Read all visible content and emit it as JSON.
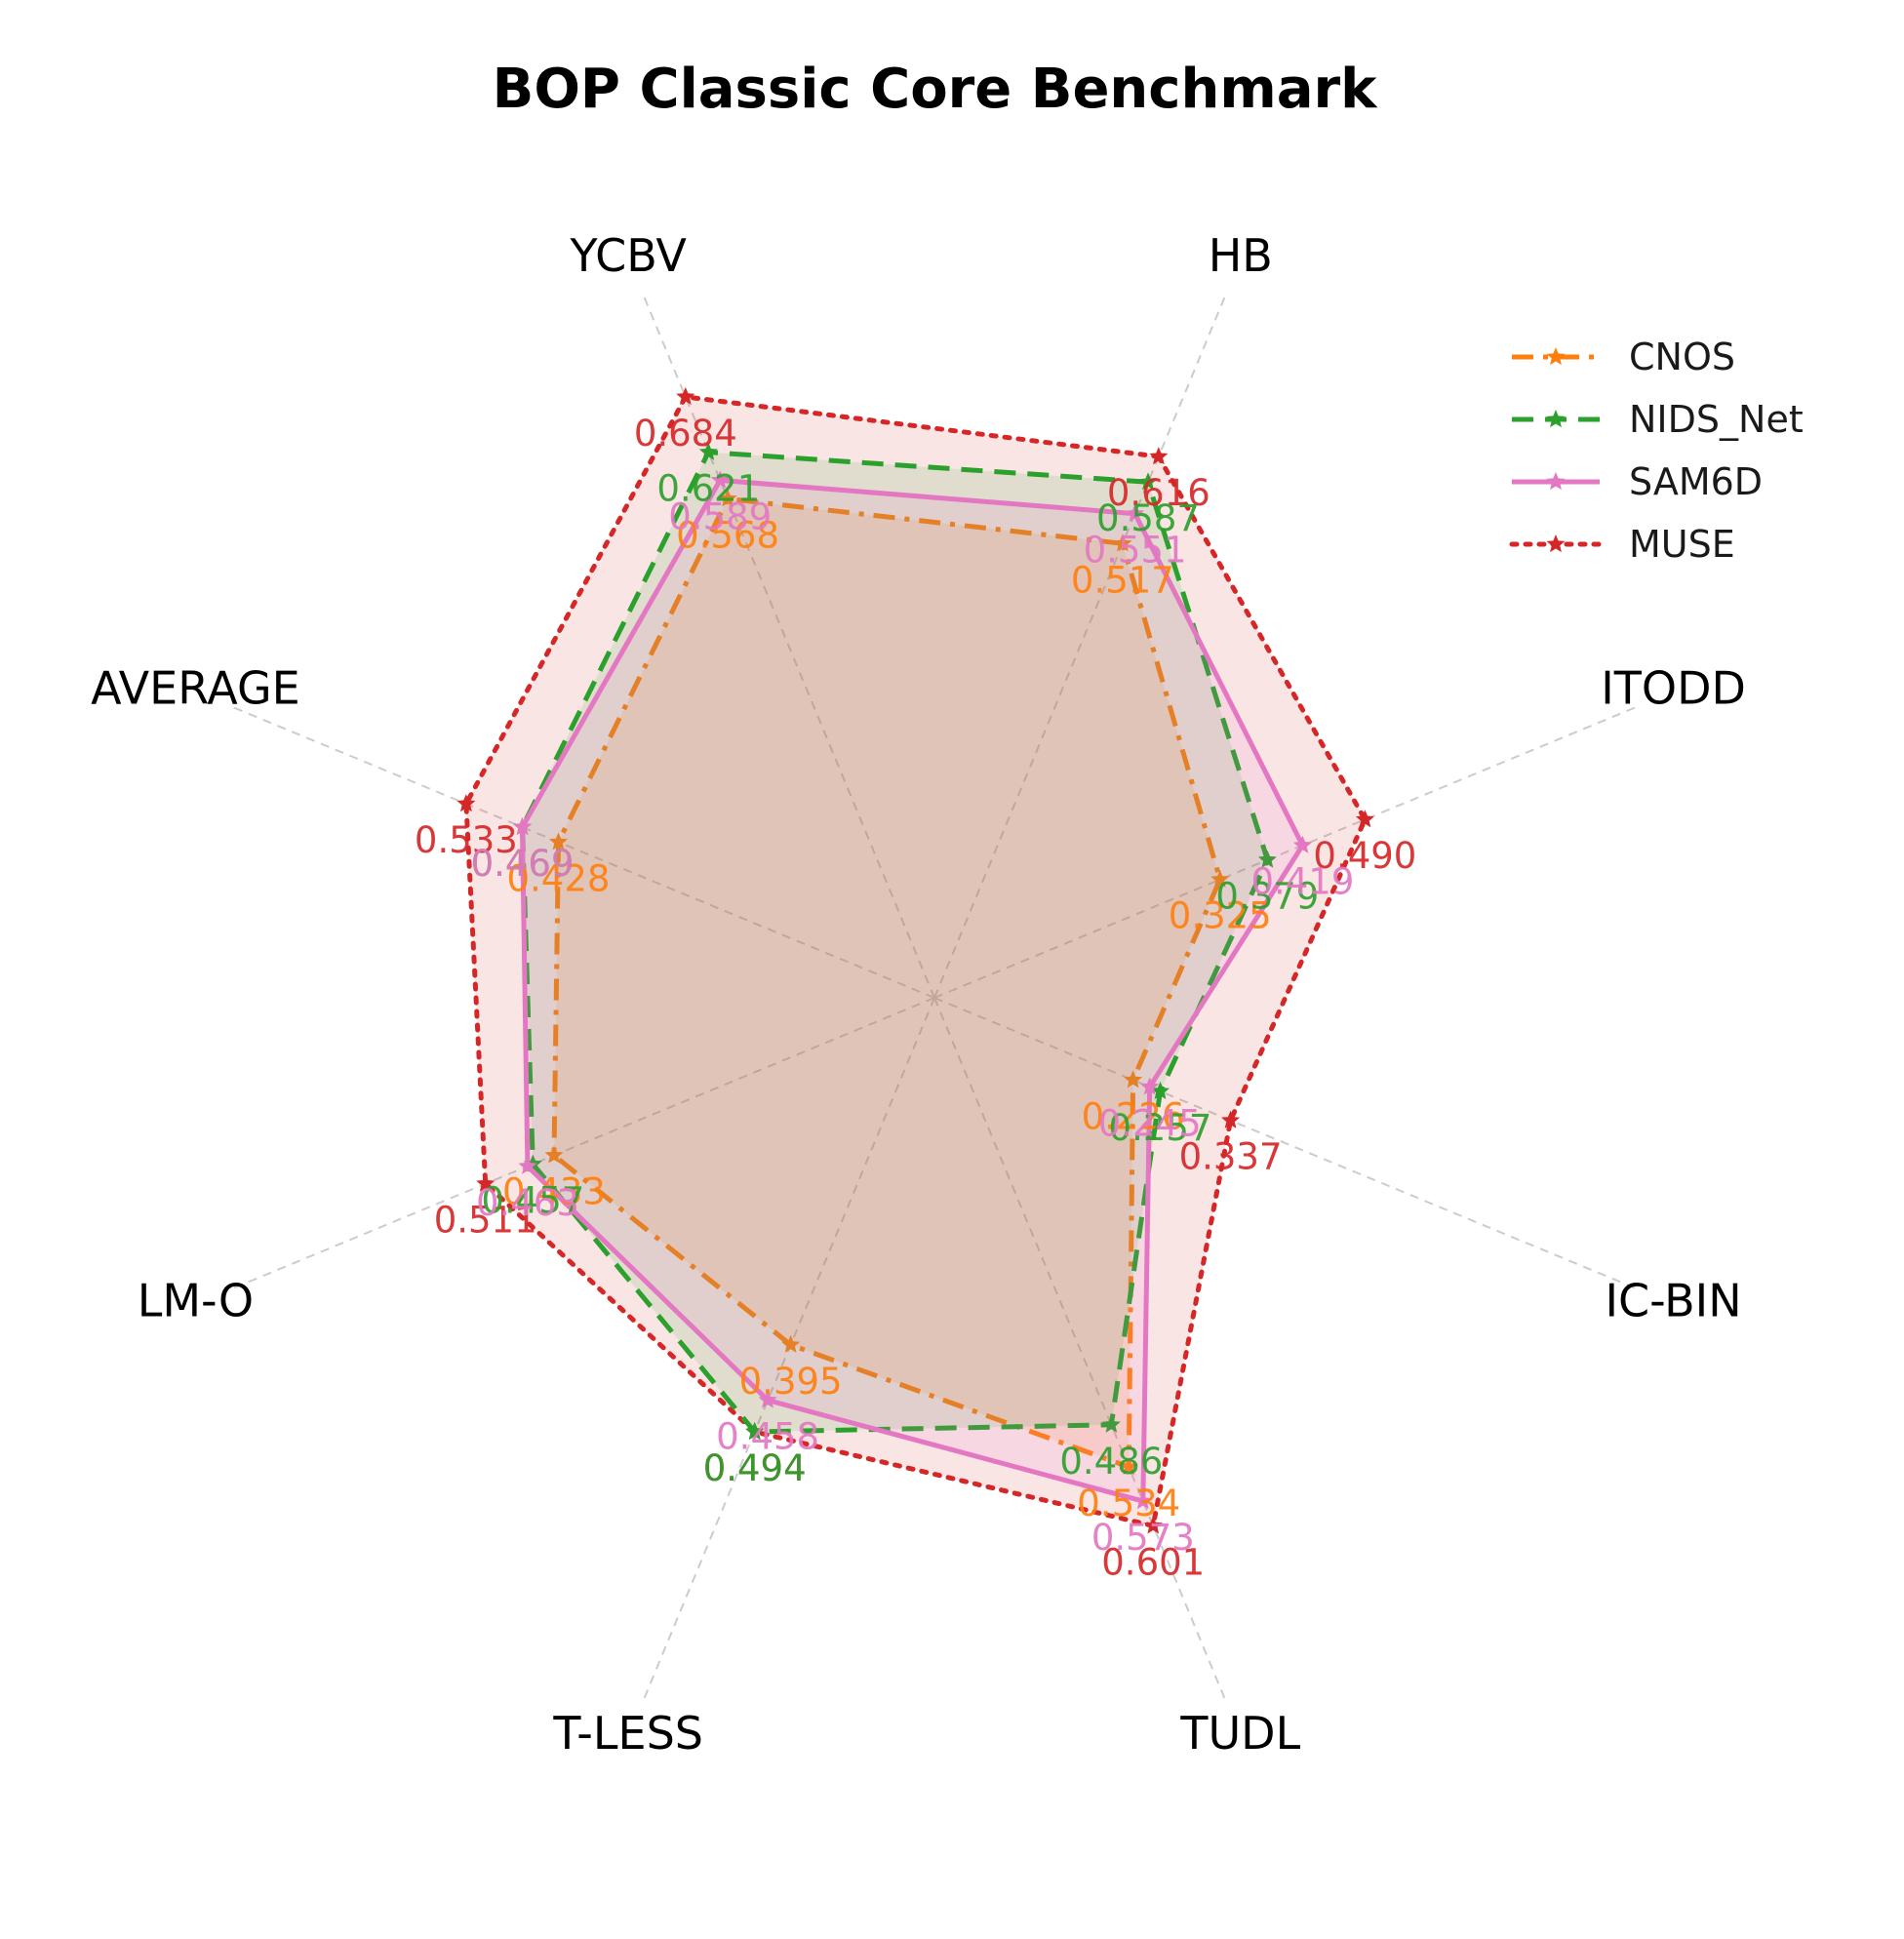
{
  "chart_data": {
    "type": "radar",
    "title": "BOP Classic Core Benchmark",
    "axes": [
      "HB",
      "YCBV",
      "AVERAGE",
      "LM-O",
      "T-LESS",
      "TUDL",
      "IC-BIN",
      "ITODD"
    ],
    "grid": true,
    "legend_position": "top-right",
    "series": [
      {
        "name": "CNOS",
        "values": [
          0.517,
          0.568,
          0.428,
          0.433,
          0.395,
          0.534,
          0.226,
          0.325
        ],
        "value_labels": [
          "0.517",
          "0.568",
          "0.428",
          "0.433",
          "0.395",
          "0.534",
          "0.226",
          "0.325"
        ],
        "color": "#ff7f0e",
        "line_style": "dashdot",
        "fill_opacity": 0.12
      },
      {
        "name": "NIDS_Net",
        "values": [
          0.587,
          0.621,
          0.469,
          0.457,
          0.494,
          0.486,
          0.257,
          0.379
        ],
        "value_labels": [
          "0.587",
          "0.621",
          "0.469",
          "0.457",
          "0.494",
          "0.486",
          "0.257",
          "0.379"
        ],
        "color": "#2ca02c",
        "line_style": "dashed",
        "fill_opacity": 0.12
      },
      {
        "name": "SAM6D",
        "values": [
          0.551,
          0.589,
          0.469,
          0.463,
          0.458,
          0.573,
          0.245,
          0.419
        ],
        "value_labels": [
          "0.551",
          "0.589",
          "0.469",
          "0.463",
          "0.458",
          "0.573",
          "0.245",
          "0.419"
        ],
        "color": "#e377c2",
        "line_style": "solid",
        "fill_opacity": 0.12
      },
      {
        "name": "MUSE",
        "values": [
          0.616,
          0.684,
          0.533,
          0.511,
          0.494,
          0.601,
          0.337,
          0.49
        ],
        "value_labels": [
          "0.616",
          "0.684",
          "0.533",
          "0.511",
          "0.494",
          "0.601",
          "0.337",
          "0.490"
        ],
        "color": "#d62728",
        "line_style": "dotted",
        "fill_opacity": 0.12
      }
    ]
  }
}
